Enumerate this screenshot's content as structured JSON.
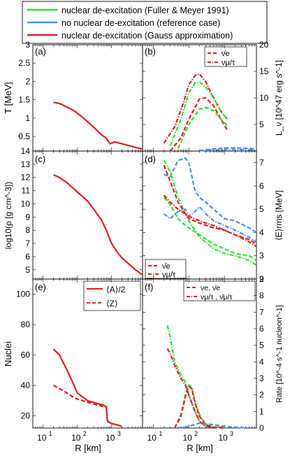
{
  "legend": {
    "entries": [
      {
        "label": "nuclear de-excitation (Fuller & Meyer 1991)",
        "color": "#33e033",
        "style": "solid"
      },
      {
        "label": "no nuclear de-excitation (reference case)",
        "color": "#4a8ff0",
        "style": "solid"
      },
      {
        "label": "nuclear de-excitation (Gauss approximation)",
        "color": "#e02020",
        "style": "solid"
      }
    ]
  },
  "colors": {
    "fuller": "#33e033",
    "none": "#4a8ff0",
    "gauss": "#e02020"
  },
  "xaxis": {
    "label": "R [km]",
    "scale": "log",
    "range": [
      5,
      8000
    ],
    "ticks": [
      {
        "v": 10,
        "label": "10"
      },
      {
        "v": 100,
        "label": "10"
      },
      {
        "v": 1000,
        "label": "10"
      }
    ],
    "tick_exps": [
      "1",
      "2",
      "3"
    ]
  },
  "chart_data": [
    {
      "type": "line",
      "panel": "(a)",
      "ylabel": "T [MeV]",
      "ylim": [
        0.1,
        3.0
      ],
      "yticks": [
        "0.5",
        "1",
        "1.5",
        "2",
        "2.5",
        "3"
      ],
      "series": [
        {
          "color": "gauss",
          "style": "solid",
          "x": [
            20,
            30,
            50,
            80,
            150,
            300,
            500,
            700,
            900,
            1200,
            2000,
            5000,
            8000
          ],
          "y": [
            1.43,
            1.4,
            1.3,
            1.2,
            1.0,
            0.75,
            0.55,
            0.45,
            0.3,
            0.35,
            0.3,
            0.2,
            0.16
          ]
        }
      ]
    },
    {
      "type": "line",
      "panel": "(b)",
      "ylabel": "L_ν [10^47 erg s^-1]",
      "ylim": [
        0,
        20
      ],
      "yticks": [
        "5",
        "10",
        "15",
        "20"
      ],
      "legend": [
        "ν̄e",
        "νμ/τ"
      ],
      "series": [
        {
          "color": "gauss",
          "style": "dash",
          "x": [
            30,
            60,
            100,
            200,
            300,
            500,
            800,
            1200
          ],
          "y": [
            0,
            2.5,
            6.0,
            9.8,
            10.0,
            8.5,
            6.0,
            4.0
          ]
        },
        {
          "color": "gauss",
          "style": "dashdot",
          "x": [
            20,
            40,
            70,
            100,
            150,
            200,
            300,
            500,
            800,
            1200
          ],
          "y": [
            1.5,
            4.5,
            9.0,
            12.5,
            14.2,
            14.5,
            13.0,
            10.0,
            7.5,
            6.0
          ]
        },
        {
          "color": "fuller",
          "style": "dash",
          "x": [
            50,
            100,
            200,
            300,
            500,
            800,
            1200
          ],
          "y": [
            0.5,
            5.0,
            7.9,
            8.2,
            7.6,
            6.0,
            4.8
          ]
        },
        {
          "color": "fuller",
          "style": "dashdot",
          "x": [
            30,
            60,
            100,
            150,
            200,
            300,
            500,
            800,
            1200
          ],
          "y": [
            1.0,
            6.0,
            11.0,
            12.8,
            13.0,
            12.0,
            10.0,
            7.5,
            6.0
          ]
        },
        {
          "color": "none",
          "style": "dash",
          "x": [
            200,
            500,
            1000,
            2000,
            5000,
            8000
          ],
          "y": [
            0.1,
            0.4,
            0.6,
            0.6,
            0.5,
            0.4
          ]
        },
        {
          "color": "none",
          "style": "dashdot",
          "x": [
            200,
            500,
            1000,
            2000,
            5000,
            8000
          ],
          "y": [
            0.05,
            0.2,
            0.3,
            0.3,
            0.25,
            0.2
          ]
        }
      ]
    },
    {
      "type": "line",
      "panel": "(c)",
      "ylabel": "log10(ρ [g cm^-3])",
      "ylim": [
        4.3,
        14.0
      ],
      "yticks": [
        "5",
        "6",
        "7",
        "8",
        "9",
        "10",
        "11",
        "12",
        "13",
        "14"
      ],
      "series": [
        {
          "color": "gauss",
          "style": "solid",
          "x": [
            20,
            30,
            50,
            100,
            200,
            300,
            500,
            700,
            1000,
            1500,
            2000,
            5000,
            8000
          ],
          "y": [
            12.2,
            12.0,
            11.6,
            10.9,
            10.2,
            9.6,
            8.8,
            8.0,
            7.0,
            6.3,
            5.9,
            5.0,
            4.6
          ]
        }
      ]
    },
    {
      "type": "line",
      "panel": "(d)",
      "ylabel": "⟨E⟩rms [MeV]",
      "ylim": [
        2.0,
        7.5
      ],
      "yticks": [
        "2",
        "3",
        "4",
        "5",
        "6",
        "7"
      ],
      "legend": [
        "ν̄e",
        "νμ/τ"
      ],
      "series": [
        {
          "color": "none",
          "style": "dash",
          "x": [
            20,
            30,
            50,
            80,
            100,
            150,
            200,
            300,
            500,
            1000,
            2000,
            5000,
            8000
          ],
          "y": [
            6.5,
            6.4,
            7.1,
            7.2,
            7.0,
            5.8,
            5.5,
            5.3,
            5.0,
            4.6,
            4.5,
            4.2,
            4.0
          ]
        },
        {
          "color": "none",
          "style": "dashdot",
          "x": [
            20,
            30,
            50,
            80,
            100,
            150,
            200,
            300,
            500,
            1000,
            2000,
            5000,
            8000
          ],
          "y": [
            4.8,
            4.6,
            4.9,
            5.0,
            4.7,
            4.9,
            5.1,
            4.8,
            4.5,
            4.3,
            4.1,
            3.8,
            3.6
          ]
        },
        {
          "color": "fuller",
          "style": "dashdot",
          "x": [
            20,
            30,
            50,
            80,
            100,
            200,
            500,
            1000,
            2000,
            5000,
            8000
          ],
          "y": [
            7.1,
            6.6,
            5.5,
            4.8,
            4.5,
            3.8,
            3.3,
            3.1,
            3.0,
            2.8,
            2.6
          ]
        },
        {
          "color": "fuller",
          "style": "dash",
          "x": [
            20,
            30,
            50,
            80,
            100,
            200,
            500,
            1000,
            2000,
            5000,
            8000
          ],
          "y": [
            5.5,
            5.2,
            4.6,
            4.3,
            4.2,
            3.9,
            3.5,
            3.3,
            3.1,
            3.0,
            2.8
          ]
        },
        {
          "color": "gauss",
          "style": "dash",
          "x": [
            20,
            30,
            50,
            80,
            100,
            200,
            500,
            1000,
            2000,
            5000,
            8000
          ],
          "y": [
            6.9,
            6.2,
            5.3,
            4.8,
            4.6,
            4.4,
            4.2,
            4.1,
            3.9,
            3.7,
            3.5
          ]
        },
        {
          "color": "gauss",
          "style": "dashdot",
          "x": [
            20,
            30,
            50,
            80,
            100,
            200,
            500,
            1000,
            2000,
            5000,
            8000
          ],
          "y": [
            5.6,
            5.3,
            5.0,
            4.8,
            4.7,
            4.5,
            4.3,
            4.1,
            3.9,
            3.6,
            3.4
          ]
        }
      ]
    },
    {
      "type": "line",
      "panel": "(e)",
      "ylabel": "Nuclei",
      "ylim": [
        12,
        110
      ],
      "yticks": [
        "20",
        "40",
        "60",
        "80",
        "100"
      ],
      "legend": [
        "⟨A⟩/2",
        "⟨Z⟩"
      ],
      "series": [
        {
          "color": "gauss",
          "style": "solid",
          "x": [
            20,
            30,
            50,
            80,
            100,
            200,
            400,
            600,
            700,
            750,
            800,
            1000,
            1500,
            2000
          ],
          "y": [
            64,
            60,
            50,
            40,
            35,
            30,
            28,
            27,
            26,
            17,
            16,
            15,
            14,
            13
          ]
        },
        {
          "color": "gauss",
          "style": "dash",
          "x": [
            20,
            30,
            50,
            80,
            100,
            200,
            400,
            600,
            700,
            750,
            800,
            1000,
            1500,
            2000
          ],
          "y": [
            40,
            38,
            35,
            32,
            31,
            29,
            27,
            26,
            26,
            17,
            16,
            15,
            14,
            13
          ]
        }
      ]
    },
    {
      "type": "line",
      "panel": "(f)",
      "ylabel": "Rate [10^-4 s^-1 nucleon^-1]",
      "ylim": [
        0,
        9
      ],
      "yticks": [
        "0",
        "1",
        "2",
        "3",
        "4",
        "5",
        "6",
        "7",
        "8",
        "9"
      ],
      "legend": [
        "νe, ν̄e",
        "νμ/τ , ν̄μ/τ"
      ],
      "series": [
        {
          "color": "fuller",
          "style": "dashdot",
          "x": [
            25,
            30,
            40,
            60,
            80,
            100,
            150,
            200,
            300,
            500,
            800,
            1000
          ],
          "y": [
            6.2,
            5.5,
            4.0,
            3.2,
            2.8,
            2.0,
            1.0,
            0.4,
            0.1,
            0.05,
            0.02,
            0
          ]
        },
        {
          "color": "gauss",
          "style": "dashdot",
          "x": [
            25,
            30,
            40,
            60,
            80,
            100,
            150,
            200,
            300,
            500,
            800,
            1000
          ],
          "y": [
            4.8,
            4.5,
            3.8,
            3.0,
            2.6,
            2.0,
            1.0,
            0.4,
            0.1,
            0.05,
            0.02,
            0
          ]
        },
        {
          "color": "fuller",
          "style": "dash",
          "x": [
            40,
            60,
            80,
            100,
            120,
            150,
            200,
            300,
            500,
            1000
          ],
          "y": [
            0,
            0.8,
            2.0,
            2.6,
            2.5,
            1.6,
            0.8,
            0.2,
            0.05,
            0
          ]
        },
        {
          "color": "gauss",
          "style": "dash",
          "x": [
            40,
            60,
            80,
            100,
            120,
            150,
            200,
            300,
            500,
            1000
          ],
          "y": [
            0,
            0.7,
            1.9,
            2.5,
            2.4,
            1.5,
            0.7,
            0.2,
            0.05,
            0
          ]
        },
        {
          "color": "none",
          "style": "dash",
          "x": [
            50,
            100,
            200,
            500,
            1000,
            2000,
            5000
          ],
          "y": [
            0,
            0.1,
            0.3,
            0.2,
            0.1,
            0.05,
            0
          ]
        }
      ]
    }
  ]
}
